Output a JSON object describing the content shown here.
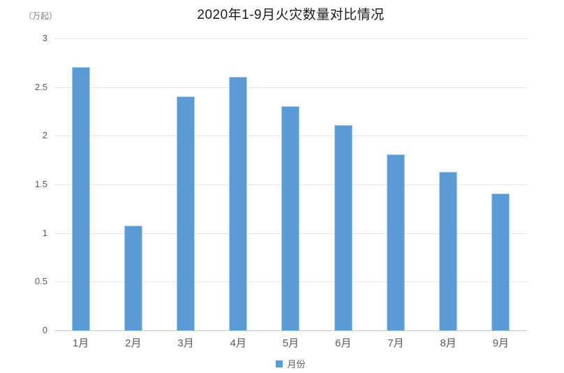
{
  "header": {
    "title": "2020年1-9月火灾数量对比情况",
    "unit_label": "（万起）"
  },
  "legend": {
    "label": "月份",
    "marker_color": "#5b9bd5",
    "position": "bottom"
  },
  "colors": {
    "bar_fill": "#5b9bd5",
    "bar_edge": "#aecdea",
    "gridline": "#e4e4e4",
    "axis_line": "#c6c6c6",
    "tick_text": "#595959",
    "title_text": "#1a1a1a",
    "unit_text": "#808080",
    "background": "#ffffff"
  },
  "chart_data": {
    "type": "bar",
    "title": "2020年1-9月火灾数量对比情况",
    "categories": [
      "1月",
      "2月",
      "3月",
      "4月",
      "5月",
      "6月",
      "7月",
      "8月",
      "9月"
    ],
    "values": [
      2.7,
      1.07,
      2.4,
      2.6,
      2.3,
      2.1,
      1.8,
      1.62,
      1.4
    ],
    "series_name": "月份",
    "xlabel": "",
    "ylabel": "（万起）",
    "ylim": [
      0,
      3
    ],
    "yticks": [
      0,
      0.5,
      1,
      1.5,
      2,
      2.5,
      3
    ],
    "grid": true,
    "legend_position": "bottom"
  }
}
